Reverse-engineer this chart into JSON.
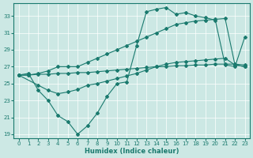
{
  "xlabel": "Humidex (Indice chaleur)",
  "xlim": [
    -0.5,
    23.5
  ],
  "ylim": [
    18.5,
    34.5
  ],
  "yticks": [
    19,
    21,
    23,
    25,
    27,
    29,
    31,
    33
  ],
  "xticks": [
    0,
    1,
    2,
    3,
    4,
    5,
    6,
    7,
    8,
    9,
    10,
    11,
    12,
    13,
    14,
    15,
    16,
    17,
    18,
    19,
    20,
    21,
    22,
    23
  ],
  "bg_color": "#cce8e4",
  "line_color": "#1a7a6e",
  "grid_color": "#ffffff",
  "line1_x": [
    0,
    1,
    2,
    3,
    4,
    5,
    6,
    7,
    8,
    9,
    10,
    11,
    12,
    13,
    14,
    15,
    16,
    17,
    18,
    19,
    20,
    21,
    22,
    23
  ],
  "line1_y": [
    26.0,
    26.2,
    24.2,
    23.0,
    21.2,
    20.5,
    19.0,
    20.0,
    21.5,
    23.5,
    25.0,
    25.2,
    29.5,
    33.5,
    33.8,
    34.0,
    33.2,
    33.4,
    33.0,
    32.8,
    32.5,
    27.2,
    27.0,
    30.5
  ],
  "line2_x": [
    0,
    1,
    2,
    3,
    4,
    5,
    6,
    7,
    8,
    9,
    10,
    11,
    12,
    13,
    14,
    15,
    16,
    17,
    18,
    19,
    20,
    21,
    22,
    23
  ],
  "line2_y": [
    26.0,
    26.0,
    26.2,
    26.5,
    27.0,
    27.0,
    27.0,
    27.5,
    28.0,
    28.5,
    29.0,
    29.5,
    30.0,
    30.5,
    31.0,
    31.5,
    32.0,
    32.2,
    32.4,
    32.5,
    32.6,
    32.7,
    27.2,
    27.0
  ],
  "line3_x": [
    0,
    1,
    2,
    3,
    4,
    5,
    6,
    7,
    8,
    9,
    10,
    11,
    12,
    13,
    14,
    15,
    16,
    17,
    18,
    19,
    20,
    21,
    22,
    23
  ],
  "line3_y": [
    26.0,
    26.0,
    26.1,
    26.1,
    26.2,
    26.2,
    26.3,
    26.3,
    26.4,
    26.5,
    26.6,
    26.7,
    26.8,
    26.9,
    27.0,
    27.0,
    27.1,
    27.1,
    27.2,
    27.2,
    27.3,
    27.3,
    27.3,
    27.2
  ],
  "line4_x": [
    0,
    2,
    3,
    4,
    5,
    6,
    7,
    8,
    9,
    10,
    11,
    12,
    13,
    14,
    15,
    16,
    17,
    18,
    19,
    20,
    21,
    22,
    23
  ],
  "line4_y": [
    26.0,
    24.8,
    24.2,
    23.8,
    24.0,
    24.3,
    24.8,
    25.0,
    25.3,
    25.6,
    25.9,
    26.2,
    26.6,
    27.0,
    27.3,
    27.5,
    27.6,
    27.7,
    27.8,
    27.9,
    28.0,
    27.2,
    27.0
  ]
}
